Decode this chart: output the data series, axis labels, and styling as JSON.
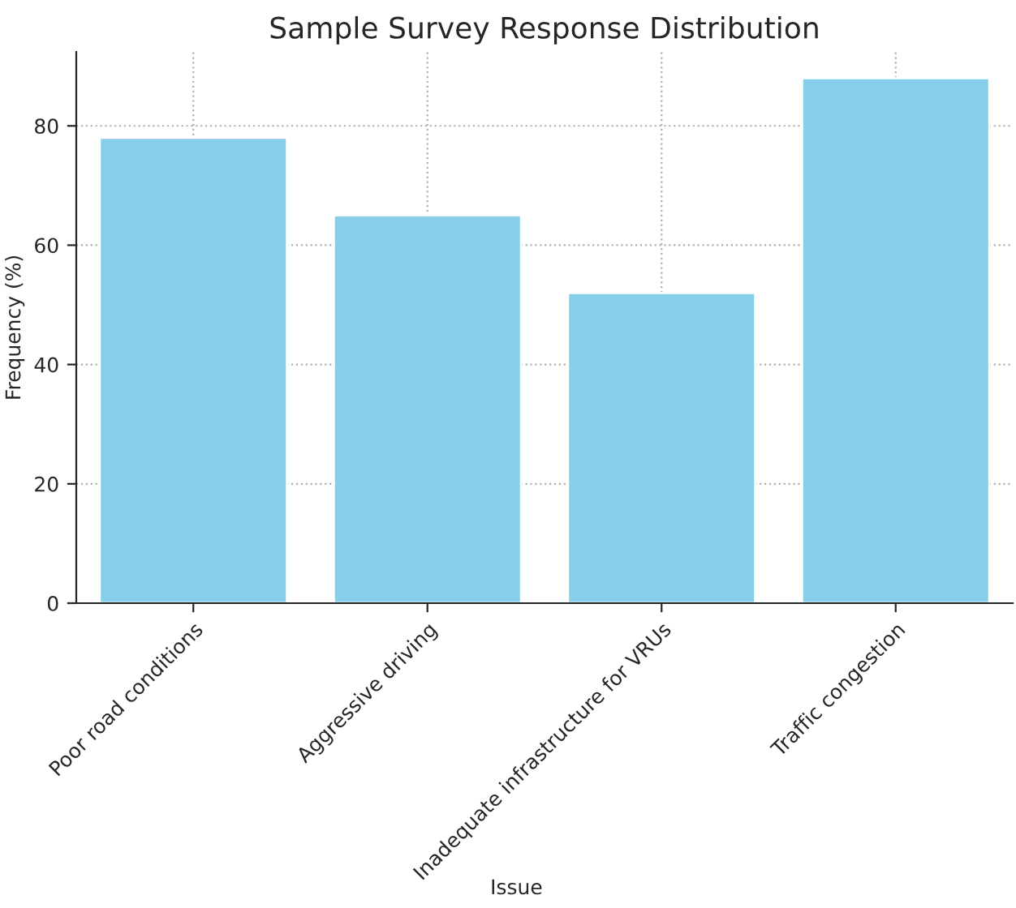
{
  "chart_data": {
    "type": "bar",
    "title": "Sample Survey Response Distribution",
    "xlabel": "Issue",
    "ylabel": "Frequency (%)",
    "categories": [
      "Poor road conditions",
      "Aggressive driving",
      "Inadequate infrastructure for VRUs",
      "Traffic congestion"
    ],
    "values": [
      78,
      65,
      52,
      88
    ],
    "color": "#87ceeb",
    "ylim": [
      0,
      92.4
    ],
    "yticks": [
      0,
      20,
      40,
      60,
      80
    ],
    "grid": true
  }
}
